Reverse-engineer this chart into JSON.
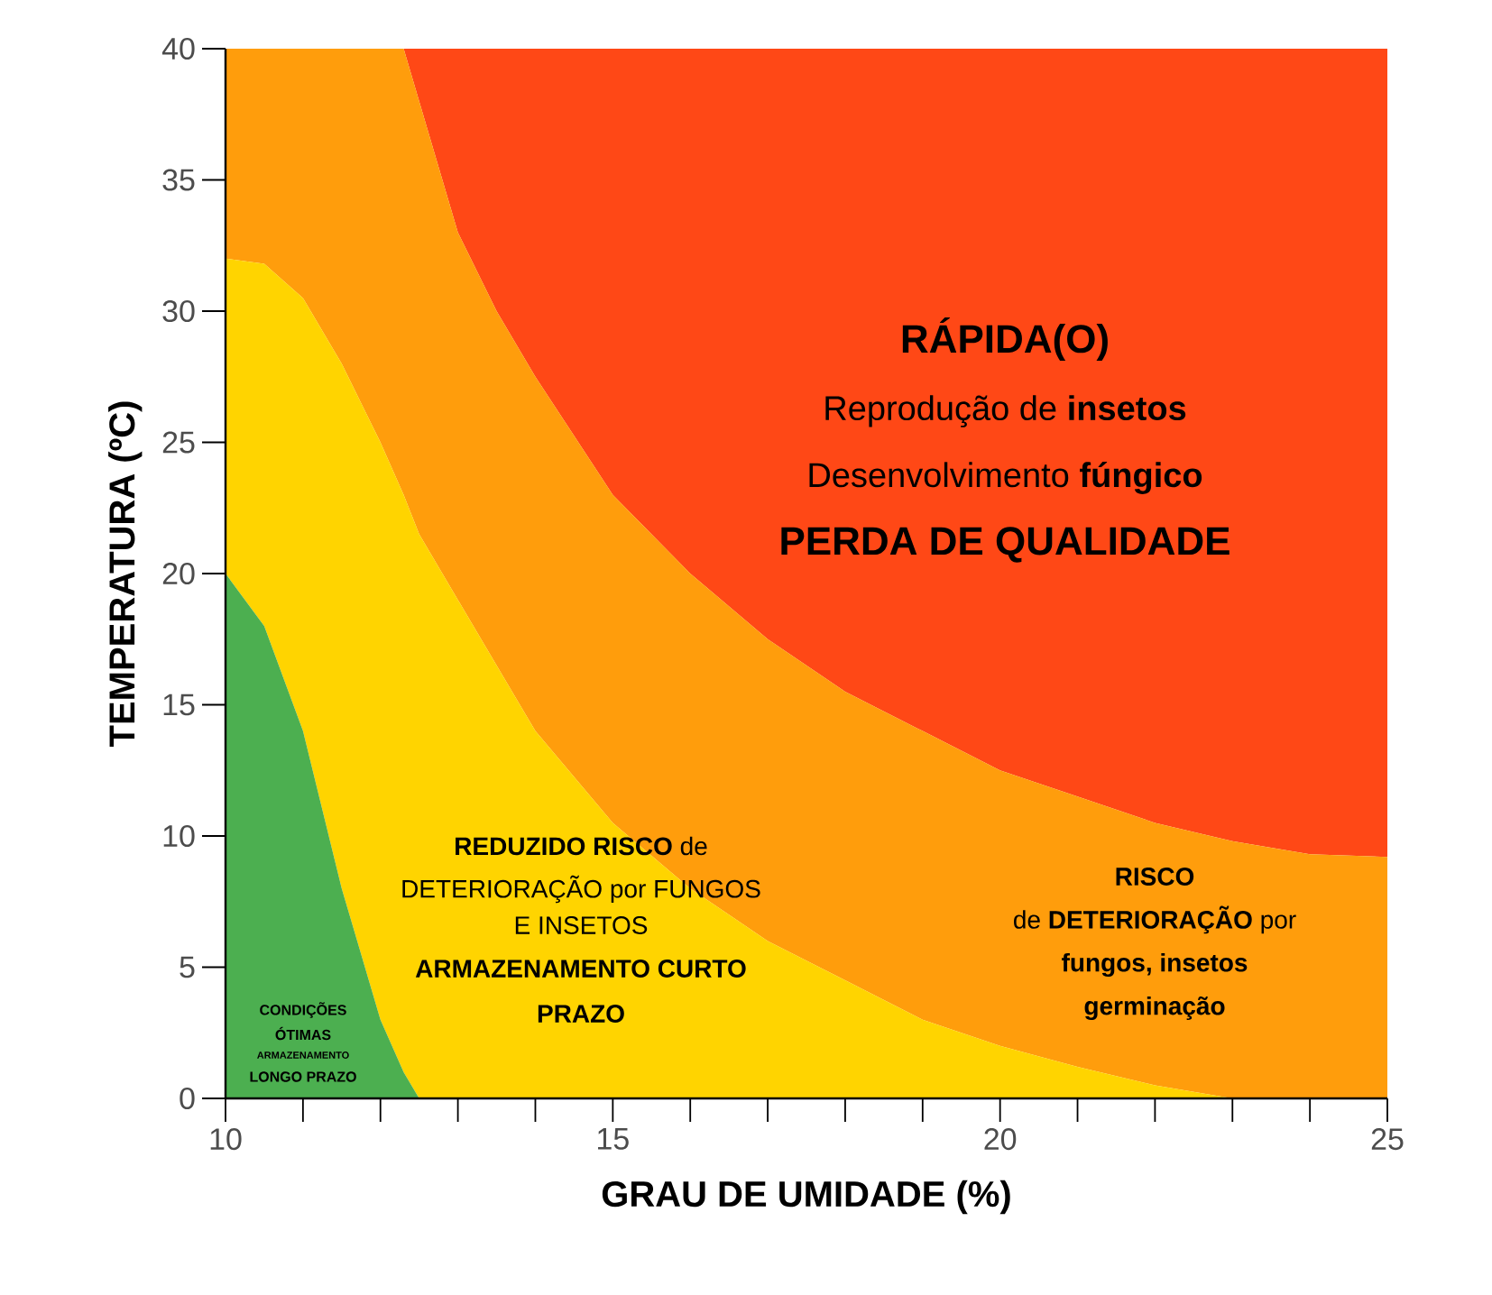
{
  "chart_data": {
    "type": "area",
    "stacked": true,
    "xlabel": "GRAU DE UMIDADE (%)",
    "ylabel": "TEMPERATURA (ºC)",
    "x": [
      10,
      10.5,
      11,
      11.5,
      12,
      12.3,
      12.5,
      13,
      13.5,
      14,
      15,
      16,
      17,
      18,
      19,
      20,
      21,
      22,
      23,
      24,
      25
    ],
    "series": [
      {
        "color": "#4caf50",
        "values": [
          20,
          18,
          14,
          8,
          3,
          1,
          0,
          0,
          0,
          0,
          0,
          0,
          0,
          0,
          0,
          0,
          0,
          0,
          0,
          0,
          0
        ]
      },
      {
        "color": "#ffd400",
        "values": [
          12,
          13.8,
          16.5,
          20,
          22,
          22,
          21.5,
          19,
          16.5,
          14,
          10.5,
          8,
          6,
          4.5,
          3,
          2,
          1.2,
          0.5,
          0,
          0,
          0
        ]
      },
      {
        "color": "#ff9d0c",
        "values": [
          8,
          8.2,
          9.5,
          12,
          15,
          17,
          16.5,
          14,
          13.5,
          13.5,
          12.5,
          12,
          11.5,
          11,
          11,
          10.5,
          10.3,
          10,
          9.8,
          9.3,
          9.2
        ]
      },
      {
        "color": "#ff4816",
        "values": [
          0,
          0,
          0,
          0,
          0,
          0,
          2,
          7,
          10,
          12.5,
          17,
          20,
          22.5,
          24.5,
          26,
          27.5,
          28.5,
          29.5,
          30.2,
          30.7,
          30.8
        ]
      }
    ],
    "xlim": [
      10,
      25
    ],
    "ylim": [
      0,
      40
    ],
    "xticks": [
      10,
      {
        "value": 11,
        "label": null
      },
      {
        "value": 12,
        "label": null
      },
      {
        "value": 13,
        "label": null
      },
      {
        "value": 14,
        "label": null
      },
      15,
      {
        "value": 16,
        "label": null
      },
      {
        "value": 17,
        "label": null
      },
      {
        "value": 18,
        "label": null
      },
      {
        "value": 19,
        "label": null
      },
      20,
      {
        "value": 21,
        "label": null
      },
      {
        "value": 22,
        "label": null
      },
      {
        "value": 23,
        "label": null
      },
      {
        "value": 24,
        "label": null
      },
      25
    ],
    "yticks": [
      0,
      5,
      10,
      15,
      20,
      25,
      30,
      35,
      40
    ],
    "annotations": [
      "RÁPIDA(O)",
      "Reprodução de **insetos**",
      "Desenvolvimento **fúngico**",
      "PERDA DE QUALIDADE",
      "**REDUZIDO RISCO** de",
      "DETERIORAÇÃO por FUNGOS",
      "E INSETOS",
      "ARMAZENAMENTO CURTO",
      "PRAZO",
      "RISCO",
      "de **DETERIORAÇÃO** por",
      "fungos, insetos",
      "germinação",
      "CONDIÇÕES",
      "ÓTIMAS",
      "ARMAZENAMENTO",
      "LONGO PRAZO"
    ]
  }
}
